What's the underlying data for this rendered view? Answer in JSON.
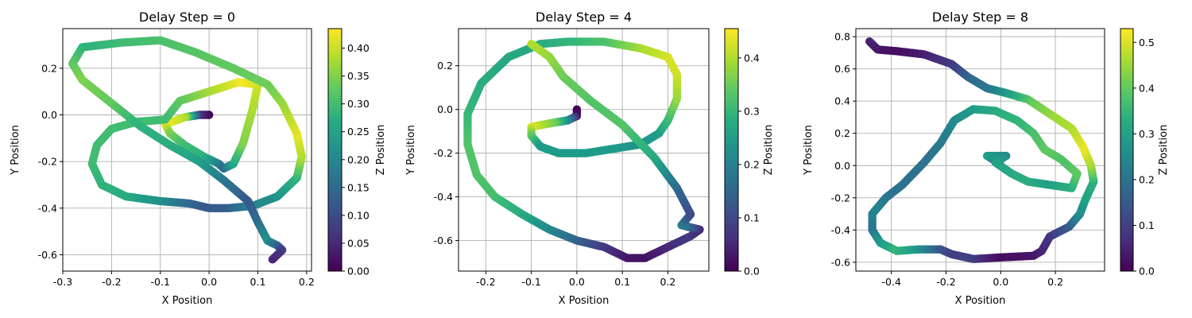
{
  "chart_data": [
    {
      "type": "scatter",
      "title": "Delay Step = 0",
      "xlabel": "X Position",
      "ylabel": "Y Position",
      "colorbar_label": "Z Position",
      "colormap": "viridis",
      "grid": true,
      "xlim": [
        -0.3,
        0.21
      ],
      "ylim": [
        -0.67,
        0.37
      ],
      "clim": [
        0.0,
        0.435
      ],
      "xticks": [
        "-0.3",
        "-0.2",
        "-0.1",
        "0.0",
        "0.1",
        "0.2"
      ],
      "xtick_values": [
        -0.3,
        -0.2,
        -0.1,
        0.0,
        0.1,
        0.2
      ],
      "yticks": [
        "-0.6",
        "-0.4",
        "-0.2",
        "0.0",
        "0.2"
      ],
      "ytick_values": [
        -0.6,
        -0.4,
        -0.2,
        0.0,
        0.2
      ],
      "cticks": [
        "0.00",
        "0.05",
        "0.10",
        "0.15",
        "0.20",
        "0.25",
        "0.30",
        "0.35",
        "0.40"
      ],
      "ctick_values": [
        0.0,
        0.05,
        0.1,
        0.15,
        0.2,
        0.25,
        0.3,
        0.35,
        0.4
      ],
      "points": [
        {
          "x": 0.0,
          "y": 0.0,
          "z": 0.0
        },
        {
          "x": 0.0,
          "y": 0.0,
          "z": 0.0
        },
        {
          "x": -0.02,
          "y": 0.0,
          "z": 0.05
        },
        {
          "x": -0.05,
          "y": -0.01,
          "z": 0.38
        },
        {
          "x": -0.09,
          "y": -0.04,
          "z": 0.43
        },
        {
          "x": -0.08,
          "y": -0.08,
          "z": 0.35
        },
        {
          "x": -0.05,
          "y": -0.13,
          "z": 0.3
        },
        {
          "x": -0.01,
          "y": -0.18,
          "z": 0.28
        },
        {
          "x": 0.02,
          "y": -0.21,
          "z": 0.2
        },
        {
          "x": 0.03,
          "y": -0.23,
          "z": 0.15
        },
        {
          "x": 0.05,
          "y": -0.21,
          "z": 0.25
        },
        {
          "x": 0.07,
          "y": -0.12,
          "z": 0.35
        },
        {
          "x": 0.09,
          "y": 0.03,
          "z": 0.38
        },
        {
          "x": 0.1,
          "y": 0.13,
          "z": 0.4
        },
        {
          "x": 0.06,
          "y": 0.14,
          "z": 0.43
        },
        {
          "x": 0.0,
          "y": 0.1,
          "z": 0.38
        },
        {
          "x": -0.06,
          "y": 0.06,
          "z": 0.33
        },
        {
          "x": -0.09,
          "y": -0.02,
          "z": 0.3
        },
        {
          "x": -0.15,
          "y": -0.03,
          "z": 0.3
        },
        {
          "x": -0.2,
          "y": -0.06,
          "z": 0.3
        },
        {
          "x": -0.23,
          "y": -0.13,
          "z": 0.3
        },
        {
          "x": -0.24,
          "y": -0.21,
          "z": 0.3
        },
        {
          "x": -0.22,
          "y": -0.3,
          "z": 0.28
        },
        {
          "x": -0.17,
          "y": -0.35,
          "z": 0.27
        },
        {
          "x": -0.1,
          "y": -0.37,
          "z": 0.22
        },
        {
          "x": -0.04,
          "y": -0.38,
          "z": 0.15
        },
        {
          "x": 0.0,
          "y": -0.4,
          "z": 0.12
        },
        {
          "x": 0.04,
          "y": -0.4,
          "z": 0.13
        },
        {
          "x": 0.09,
          "y": -0.39,
          "z": 0.2
        },
        {
          "x": 0.14,
          "y": -0.35,
          "z": 0.22
        },
        {
          "x": 0.18,
          "y": -0.27,
          "z": 0.28
        },
        {
          "x": 0.19,
          "y": -0.18,
          "z": 0.38
        },
        {
          "x": 0.18,
          "y": -0.08,
          "z": 0.42
        },
        {
          "x": 0.15,
          "y": 0.05,
          "z": 0.37
        },
        {
          "x": 0.12,
          "y": 0.13,
          "z": 0.34
        },
        {
          "x": 0.05,
          "y": 0.2,
          "z": 0.33
        },
        {
          "x": -0.03,
          "y": 0.27,
          "z": 0.32
        },
        {
          "x": -0.1,
          "y": 0.32,
          "z": 0.31
        },
        {
          "x": -0.18,
          "y": 0.31,
          "z": 0.3
        },
        {
          "x": -0.26,
          "y": 0.29,
          "z": 0.28
        },
        {
          "x": -0.28,
          "y": 0.22,
          "z": 0.32
        },
        {
          "x": -0.26,
          "y": 0.15,
          "z": 0.35
        },
        {
          "x": -0.2,
          "y": 0.05,
          "z": 0.33
        },
        {
          "x": -0.14,
          "y": -0.05,
          "z": 0.28
        },
        {
          "x": -0.08,
          "y": -0.13,
          "z": 0.27
        },
        {
          "x": -0.02,
          "y": -0.2,
          "z": 0.25
        },
        {
          "x": 0.03,
          "y": -0.28,
          "z": 0.18
        },
        {
          "x": 0.08,
          "y": -0.37,
          "z": 0.12
        },
        {
          "x": 0.1,
          "y": -0.46,
          "z": 0.15
        },
        {
          "x": 0.12,
          "y": -0.54,
          "z": 0.22
        },
        {
          "x": 0.14,
          "y": -0.56,
          "z": 0.15
        },
        {
          "x": 0.15,
          "y": -0.58,
          "z": 0.08
        },
        {
          "x": 0.13,
          "y": -0.62,
          "z": 0.05
        }
      ]
    },
    {
      "type": "scatter",
      "title": "Delay Step = 4",
      "xlabel": "X Position",
      "ylabel": "Y Position",
      "colorbar_label": "Z Position",
      "colormap": "viridis",
      "grid": true,
      "xlim": [
        -0.26,
        0.29
      ],
      "ylim": [
        -0.74,
        0.37
      ],
      "clim": [
        0.0,
        0.455
      ],
      "xticks": [
        "-0.2",
        "-0.1",
        "0.0",
        "0.1",
        "0.2"
      ],
      "xtick_values": [
        -0.2,
        -0.1,
        0.0,
        0.1,
        0.2
      ],
      "yticks": [
        "-0.6",
        "-0.4",
        "-0.2",
        "0.0",
        "0.2"
      ],
      "ytick_values": [
        -0.6,
        -0.4,
        -0.2,
        0.0,
        0.2
      ],
      "cticks": [
        "0.0",
        "0.1",
        "0.2",
        "0.3",
        "0.4"
      ],
      "ctick_values": [
        0.0,
        0.1,
        0.2,
        0.3,
        0.4
      ],
      "points": [
        {
          "x": 0.0,
          "y": 0.0,
          "z": 0.0
        },
        {
          "x": 0.0,
          "y": -0.03,
          "z": 0.02
        },
        {
          "x": -0.02,
          "y": -0.05,
          "z": 0.2
        },
        {
          "x": -0.05,
          "y": -0.06,
          "z": 0.35
        },
        {
          "x": -0.1,
          "y": -0.08,
          "z": 0.43
        },
        {
          "x": -0.1,
          "y": -0.12,
          "z": 0.35
        },
        {
          "x": -0.08,
          "y": -0.17,
          "z": 0.25
        },
        {
          "x": -0.04,
          "y": -0.2,
          "z": 0.25
        },
        {
          "x": 0.02,
          "y": -0.2,
          "z": 0.25
        },
        {
          "x": 0.08,
          "y": -0.18,
          "z": 0.25
        },
        {
          "x": 0.14,
          "y": -0.16,
          "z": 0.23
        },
        {
          "x": 0.18,
          "y": -0.11,
          "z": 0.25
        },
        {
          "x": 0.2,
          "y": -0.05,
          "z": 0.3
        },
        {
          "x": 0.22,
          "y": 0.05,
          "z": 0.38
        },
        {
          "x": 0.22,
          "y": 0.16,
          "z": 0.42
        },
        {
          "x": 0.2,
          "y": 0.24,
          "z": 0.43
        },
        {
          "x": 0.14,
          "y": 0.28,
          "z": 0.4
        },
        {
          "x": 0.06,
          "y": 0.31,
          "z": 0.33
        },
        {
          "x": -0.02,
          "y": 0.31,
          "z": 0.3
        },
        {
          "x": -0.08,
          "y": 0.3,
          "z": 0.28
        },
        {
          "x": -0.15,
          "y": 0.24,
          "z": 0.27
        },
        {
          "x": -0.21,
          "y": 0.12,
          "z": 0.28
        },
        {
          "x": -0.24,
          "y": -0.02,
          "z": 0.3
        },
        {
          "x": -0.24,
          "y": -0.16,
          "z": 0.33
        },
        {
          "x": -0.22,
          "y": -0.3,
          "z": 0.33
        },
        {
          "x": -0.18,
          "y": -0.4,
          "z": 0.32
        },
        {
          "x": -0.12,
          "y": -0.48,
          "z": 0.28
        },
        {
          "x": -0.06,
          "y": -0.55,
          "z": 0.22
        },
        {
          "x": 0.0,
          "y": -0.6,
          "z": 0.15
        },
        {
          "x": 0.06,
          "y": -0.63,
          "z": 0.08
        },
        {
          "x": 0.11,
          "y": -0.68,
          "z": 0.03
        },
        {
          "x": 0.15,
          "y": -0.68,
          "z": 0.02
        },
        {
          "x": 0.2,
          "y": -0.63,
          "z": 0.05
        },
        {
          "x": 0.25,
          "y": -0.58,
          "z": 0.08
        },
        {
          "x": 0.27,
          "y": -0.55,
          "z": 0.05
        },
        {
          "x": 0.23,
          "y": -0.53,
          "z": 0.2
        },
        {
          "x": 0.25,
          "y": -0.48,
          "z": 0.1
        },
        {
          "x": 0.22,
          "y": -0.36,
          "z": 0.15
        },
        {
          "x": 0.17,
          "y": -0.22,
          "z": 0.27
        },
        {
          "x": 0.1,
          "y": -0.07,
          "z": 0.33
        },
        {
          "x": 0.03,
          "y": 0.04,
          "z": 0.33
        },
        {
          "x": -0.03,
          "y": 0.15,
          "z": 0.35
        },
        {
          "x": -0.06,
          "y": 0.24,
          "z": 0.38
        },
        {
          "x": -0.1,
          "y": 0.3,
          "z": 0.4
        }
      ]
    },
    {
      "type": "scatter",
      "title": "Delay Step = 8",
      "xlabel": "X Position",
      "ylabel": "Y Position",
      "colorbar_label": "Z Position",
      "colormap": "viridis",
      "grid": true,
      "xlim": [
        -0.53,
        0.38
      ],
      "ylim": [
        -0.655,
        0.85
      ],
      "clim": [
        0.0,
        0.53
      ],
      "xticks": [
        "-0.4",
        "-0.2",
        "0.0",
        "0.2"
      ],
      "xtick_values": [
        -0.4,
        -0.2,
        0.0,
        0.2
      ],
      "yticks": [
        "-0.6",
        "-0.4",
        "-0.2",
        "0.0",
        "0.2",
        "0.4",
        "0.6",
        "0.8"
      ],
      "ytick_values": [
        -0.6,
        -0.4,
        -0.2,
        0.0,
        0.2,
        0.4,
        0.6,
        0.8
      ],
      "cticks": [
        "0.0",
        "0.1",
        "0.2",
        "0.3",
        "0.4",
        "0.5"
      ],
      "ctick_values": [
        0.0,
        0.1,
        0.2,
        0.3,
        0.4,
        0.5
      ],
      "points": [
        {
          "x": 0.0,
          "y": 0.0,
          "z": 0.0
        },
        {
          "x": -0.02,
          "y": 0.03,
          "z": 0.1
        },
        {
          "x": -0.05,
          "y": 0.06,
          "z": 0.3
        },
        {
          "x": 0.02,
          "y": 0.06,
          "z": 0.25
        },
        {
          "x": -0.02,
          "y": 0.02,
          "z": 0.3
        },
        {
          "x": 0.04,
          "y": -0.05,
          "z": 0.32
        },
        {
          "x": 0.1,
          "y": -0.1,
          "z": 0.33
        },
        {
          "x": 0.18,
          "y": -0.12,
          "z": 0.3
        },
        {
          "x": 0.26,
          "y": -0.14,
          "z": 0.33
        },
        {
          "x": 0.28,
          "y": -0.05,
          "z": 0.4
        },
        {
          "x": 0.22,
          "y": 0.04,
          "z": 0.38
        },
        {
          "x": 0.16,
          "y": 0.1,
          "z": 0.4
        },
        {
          "x": 0.12,
          "y": 0.2,
          "z": 0.38
        },
        {
          "x": 0.06,
          "y": 0.28,
          "z": 0.35
        },
        {
          "x": -0.02,
          "y": 0.34,
          "z": 0.33
        },
        {
          "x": -0.1,
          "y": 0.35,
          "z": 0.3
        },
        {
          "x": -0.17,
          "y": 0.28,
          "z": 0.26
        },
        {
          "x": -0.22,
          "y": 0.14,
          "z": 0.22
        },
        {
          "x": -0.28,
          "y": 0.02,
          "z": 0.2
        },
        {
          "x": -0.36,
          "y": -0.12,
          "z": 0.2
        },
        {
          "x": -0.42,
          "y": -0.2,
          "z": 0.2
        },
        {
          "x": -0.47,
          "y": -0.3,
          "z": 0.25
        },
        {
          "x": -0.47,
          "y": -0.4,
          "z": 0.2
        },
        {
          "x": -0.44,
          "y": -0.48,
          "z": 0.28
        },
        {
          "x": -0.38,
          "y": -0.53,
          "z": 0.35
        },
        {
          "x": -0.3,
          "y": -0.52,
          "z": 0.28
        },
        {
          "x": -0.22,
          "y": -0.52,
          "z": 0.15
        },
        {
          "x": -0.18,
          "y": -0.55,
          "z": 0.1
        },
        {
          "x": -0.1,
          "y": -0.58,
          "z": 0.1
        },
        {
          "x": 0.0,
          "y": -0.57,
          "z": 0.02
        },
        {
          "x": 0.12,
          "y": -0.56,
          "z": 0.03
        },
        {
          "x": 0.15,
          "y": -0.53,
          "z": 0.05
        },
        {
          "x": 0.18,
          "y": -0.44,
          "z": 0.08
        },
        {
          "x": 0.25,
          "y": -0.38,
          "z": 0.15
        },
        {
          "x": 0.29,
          "y": -0.3,
          "z": 0.25
        },
        {
          "x": 0.31,
          "y": -0.21,
          "z": 0.3
        },
        {
          "x": 0.34,
          "y": -0.1,
          "z": 0.33
        },
        {
          "x": 0.33,
          "y": 0.0,
          "z": 0.45
        },
        {
          "x": 0.3,
          "y": 0.12,
          "z": 0.52
        },
        {
          "x": 0.26,
          "y": 0.23,
          "z": 0.47
        },
        {
          "x": 0.18,
          "y": 0.32,
          "z": 0.45
        },
        {
          "x": 0.1,
          "y": 0.41,
          "z": 0.4
        },
        {
          "x": 0.02,
          "y": 0.45,
          "z": 0.3
        },
        {
          "x": -0.05,
          "y": 0.48,
          "z": 0.22
        },
        {
          "x": -0.12,
          "y": 0.55,
          "z": 0.18
        },
        {
          "x": -0.18,
          "y": 0.63,
          "z": 0.1
        },
        {
          "x": -0.28,
          "y": 0.69,
          "z": 0.05
        },
        {
          "x": -0.38,
          "y": 0.71,
          "z": 0.02
        },
        {
          "x": -0.45,
          "y": 0.72,
          "z": 0.03
        },
        {
          "x": -0.48,
          "y": 0.77,
          "z": 0.05
        }
      ]
    }
  ]
}
